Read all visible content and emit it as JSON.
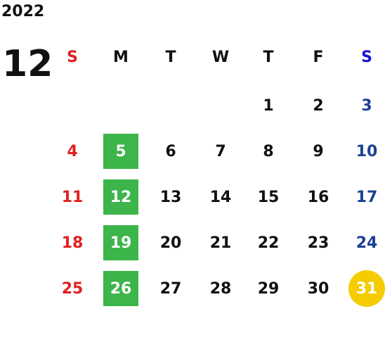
{
  "year": "2022",
  "month": "12",
  "weekdays": [
    "S",
    "M",
    "T",
    "W",
    "T",
    "F",
    "S"
  ],
  "weeks": [
    [
      null,
      null,
      null,
      null,
      "1",
      "2",
      "3"
    ],
    [
      "4",
      "5",
      "6",
      "7",
      "8",
      "9",
      "10"
    ],
    [
      "11",
      "12",
      "13",
      "14",
      "15",
      "16",
      "17"
    ],
    [
      "18",
      "19",
      "20",
      "21",
      "22",
      "23",
      "24"
    ],
    [
      "25",
      "26",
      "27",
      "28",
      "29",
      "30",
      "31"
    ]
  ]
}
